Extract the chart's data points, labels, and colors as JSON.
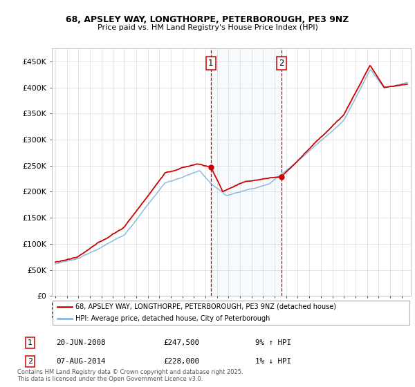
{
  "title1": "68, APSLEY WAY, LONGTHORPE, PETERBOROUGH, PE3 9NZ",
  "title2": "Price paid vs. HM Land Registry's House Price Index (HPI)",
  "legend_property": "68, APSLEY WAY, LONGTHORPE, PETERBOROUGH, PE3 9NZ (detached house)",
  "legend_hpi": "HPI: Average price, detached house, City of Peterborough",
  "sale1_date": "20-JUN-2008",
  "sale1_price": 247500,
  "sale1_label": "9% ↑ HPI",
  "sale2_date": "07-AUG-2014",
  "sale2_price": 228000,
  "sale2_label": "1% ↓ HPI",
  "footnote": "Contains HM Land Registry data © Crown copyright and database right 2025.\nThis data is licensed under the Open Government Licence v3.0.",
  "ylim": [
    0,
    475000
  ],
  "yticks": [
    0,
    50000,
    100000,
    150000,
    200000,
    250000,
    300000,
    350000,
    400000,
    450000
  ],
  "hpi_color": "#7bafd4",
  "property_color": "#cc0000",
  "sale1_x": 2008.46,
  "sale2_x": 2014.59,
  "shade_xmin": 2008.46,
  "shade_xmax": 2014.59,
  "xmin": 1994.7,
  "xmax": 2025.8
}
